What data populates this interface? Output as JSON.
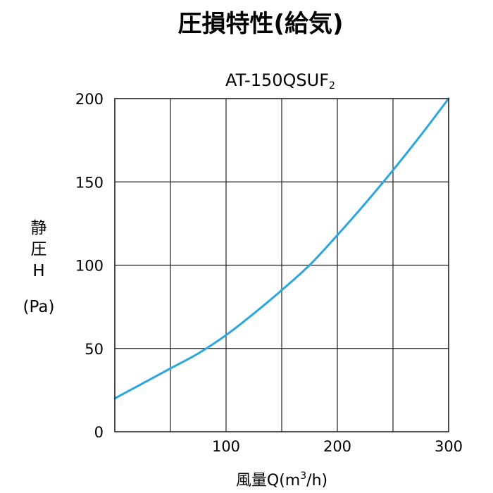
{
  "title": "圧損特性(給気)",
  "chart_data": {
    "type": "line",
    "subtitle": {
      "main": "AT-150QSUF",
      "subscript": "2"
    },
    "xlabel": {
      "prefix": "風量Q(m",
      "sup": "3",
      "suffix": "/h)"
    },
    "ylabel": [
      "静",
      "圧",
      "H",
      "(Pa)"
    ],
    "xlim": [
      0,
      300
    ],
    "ylim": [
      0,
      200
    ],
    "x_ticks": [
      {
        "value": 0,
        "label": ""
      },
      {
        "value": 100,
        "label": "100"
      },
      {
        "value": 200,
        "label": "200"
      },
      {
        "value": 300,
        "label": "300"
      }
    ],
    "y_ticks": [
      {
        "value": 0,
        "label": "0"
      },
      {
        "value": 50,
        "label": "50"
      },
      {
        "value": 100,
        "label": "100"
      },
      {
        "value": 150,
        "label": "150"
      },
      {
        "value": 200,
        "label": "200"
      }
    ],
    "grid_x": [
      50,
      100,
      150,
      200,
      250
    ],
    "grid_y": [
      50,
      100,
      150
    ],
    "grid": true,
    "series": [
      {
        "color": "#2ba6de",
        "x": [
          0,
          25,
          50,
          75,
          100,
          125,
          150,
          175,
          200,
          225,
          250,
          275,
          300
        ],
        "y": [
          20,
          29,
          38,
          47,
          58,
          71,
          85,
          100,
          118,
          137,
          157,
          178,
          200
        ]
      }
    ]
  }
}
